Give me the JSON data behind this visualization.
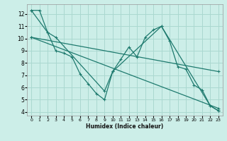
{
  "xlabel": "Humidex (Indice chaleur)",
  "background_color": "#cceee8",
  "grid_color": "#aad8d0",
  "line_color": "#1e7a6e",
  "xlim": [
    -0.5,
    23.5
  ],
  "ylim": [
    3.7,
    12.8
  ],
  "yticks": [
    4,
    5,
    6,
    7,
    8,
    9,
    10,
    11,
    12
  ],
  "xticks": [
    0,
    1,
    2,
    3,
    4,
    5,
    6,
    7,
    8,
    9,
    10,
    11,
    12,
    13,
    14,
    15,
    16,
    17,
    18,
    19,
    20,
    21,
    22,
    23
  ],
  "series": [
    {
      "x": [
        0,
        1,
        2,
        3,
        4,
        5,
        6,
        7,
        8,
        9,
        10,
        11,
        12,
        13,
        14,
        15,
        16,
        17,
        18,
        19,
        20,
        21,
        22,
        23
      ],
      "y": [
        12.3,
        12.3,
        10.5,
        9.0,
        8.8,
        8.5,
        7.1,
        6.3,
        5.5,
        5.0,
        7.3,
        8.3,
        9.3,
        8.5,
        10.1,
        10.7,
        11.0,
        9.8,
        7.7,
        7.5,
        6.2,
        5.8,
        4.5,
        4.1
      ]
    },
    {
      "x": [
        0,
        2,
        3,
        9,
        10,
        16,
        22,
        23
      ],
      "y": [
        12.3,
        10.5,
        10.1,
        5.7,
        7.3,
        11.0,
        4.5,
        4.1
      ]
    },
    {
      "x": [
        0,
        23
      ],
      "y": [
        10.1,
        7.3
      ]
    },
    {
      "x": [
        0,
        23
      ],
      "y": [
        10.1,
        4.3
      ]
    }
  ]
}
